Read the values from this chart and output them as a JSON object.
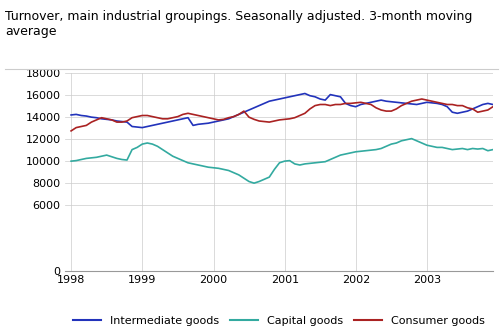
{
  "title": "Turnover, main industrial groupings. Seasonally adjusted. 3-month moving average",
  "title_fontsize": 9,
  "xlim": [
    1997.92,
    2003.92
  ],
  "ylim": [
    0,
    18000
  ],
  "yticks": [
    0,
    6000,
    8000,
    10000,
    12000,
    14000,
    16000,
    18000
  ],
  "xticks": [
    1998,
    1999,
    2000,
    2001,
    2002,
    2003
  ],
  "legend_labels": [
    "Intermediate goods",
    "Capital goods",
    "Consumer goods"
  ],
  "colors": {
    "intermediate": "#2233bb",
    "capital": "#33aaa0",
    "consumer": "#aa2222"
  },
  "background_color": "#ffffff",
  "grid_color": "#cccccc",
  "intermediate_goods": [
    14150,
    14200,
    14100,
    14050,
    13950,
    13900,
    13800,
    13750,
    13700,
    13600,
    13550,
    13500,
    13100,
    13050,
    13000,
    13100,
    13200,
    13300,
    13400,
    13500,
    13600,
    13700,
    13800,
    13900,
    13200,
    13300,
    13350,
    13400,
    13500,
    13600,
    13700,
    13800,
    14000,
    14200,
    14400,
    14600,
    14800,
    15000,
    15200,
    15400,
    15500,
    15600,
    15700,
    15800,
    15900,
    16000,
    16100,
    15900,
    15800,
    15600,
    15500,
    16000,
    15900,
    15800,
    15200,
    15000,
    14900,
    15100,
    15200,
    15300,
    15400,
    15500,
    15400,
    15350,
    15300,
    15250,
    15200,
    15150,
    15100,
    15200,
    15300,
    15250,
    15200,
    15100,
    14900,
    14400,
    14300,
    14400,
    14500,
    14700,
    14900,
    15100,
    15200,
    15100
  ],
  "capital_goods": [
    9950,
    10000,
    10100,
    10200,
    10250,
    10300,
    10400,
    10500,
    10350,
    10200,
    10100,
    10050,
    11000,
    11200,
    11500,
    11600,
    11500,
    11300,
    11000,
    10700,
    10400,
    10200,
    10000,
    9800,
    9700,
    9600,
    9500,
    9400,
    9350,
    9300,
    9200,
    9100,
    8900,
    8700,
    8400,
    8100,
    7950,
    8100,
    8300,
    8500,
    9200,
    9800,
    9950,
    10000,
    9700,
    9600,
    9700,
    9750,
    9800,
    9850,
    9900,
    10100,
    10300,
    10500,
    10600,
    10700,
    10800,
    10850,
    10900,
    10950,
    11000,
    11100,
    11300,
    11500,
    11600,
    11800,
    11900,
    12000,
    11800,
    11600,
    11400,
    11300,
    11200,
    11200,
    11100,
    11000,
    11050,
    11100,
    11000,
    11100,
    11050,
    11100,
    10900,
    11000
  ],
  "consumer_goods": [
    12700,
    13000,
    13100,
    13200,
    13500,
    13700,
    13900,
    13800,
    13700,
    13500,
    13500,
    13600,
    13900,
    14000,
    14100,
    14100,
    14000,
    13900,
    13800,
    13800,
    13900,
    14000,
    14200,
    14300,
    14200,
    14100,
    14000,
    13900,
    13800,
    13700,
    13750,
    13900,
    14000,
    14200,
    14500,
    13950,
    13750,
    13600,
    13550,
    13500,
    13600,
    13700,
    13750,
    13800,
    13900,
    14100,
    14300,
    14700,
    15000,
    15100,
    15100,
    15000,
    15100,
    15100,
    15200,
    15200,
    15250,
    15300,
    15200,
    15100,
    14800,
    14600,
    14500,
    14500,
    14700,
    15000,
    15200,
    15400,
    15500,
    15600,
    15500,
    15400,
    15300,
    15200,
    15100,
    15100,
    15000,
    15000,
    14800,
    14700,
    14400,
    14500,
    14600,
    14900
  ]
}
